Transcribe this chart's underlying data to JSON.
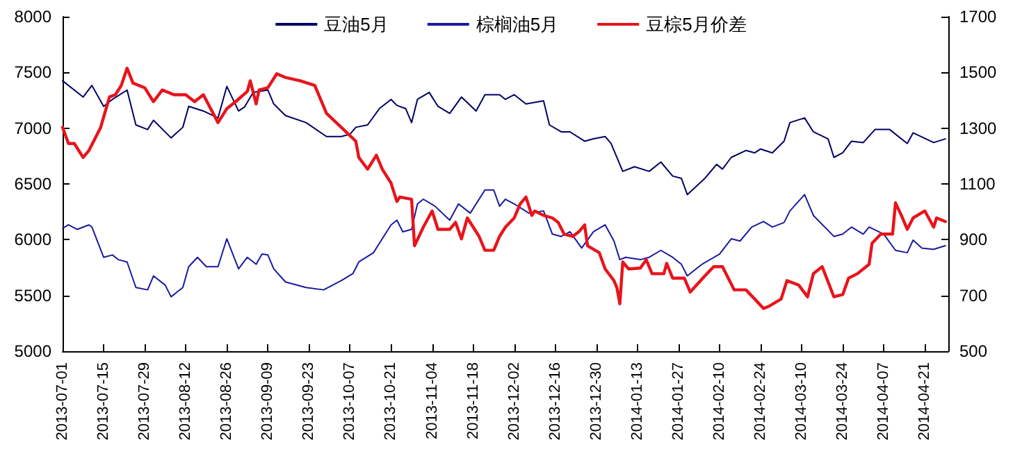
{
  "chart_data": {
    "type": "line",
    "xlim": [
      "2013-07-01",
      "2014-04-29"
    ],
    "xticks": [
      "2013-07-01",
      "2013-07-15",
      "2013-07-29",
      "2013-08-12",
      "2013-08-26",
      "2013-09-09",
      "2013-09-23",
      "2013-10-07",
      "2013-10-21",
      "2013-11-04",
      "2013-11-18",
      "2013-12-02",
      "2013-12-16",
      "2013-12-30",
      "2014-01-13",
      "2014-01-27",
      "2014-02-10",
      "2014-02-24",
      "2014-03-10",
      "2014-03-24",
      "2014-04-07",
      "2014-04-21"
    ],
    "ylim": [
      5000,
      8000
    ],
    "yticks": [
      5000,
      5500,
      6000,
      6500,
      7000,
      7500,
      8000
    ],
    "y2lim": [
      500,
      1700
    ],
    "y2ticks": [
      500,
      700,
      900,
      1100,
      1300,
      1500,
      1700
    ],
    "grid": false,
    "legend": "top",
    "marker": "none",
    "line_style": "solid",
    "series": [
      {
        "name": "豆油5月",
        "color": "#000066",
        "x": [
          "2013-07-01",
          "2013-07-08",
          "2013-07-11",
          "2013-07-15",
          "2013-07-18",
          "2013-07-23",
          "2013-07-26",
          "2013-07-30",
          "2013-08-01",
          "2013-08-07",
          "2013-08-11",
          "2013-08-13",
          "2013-08-18",
          "2013-08-23",
          "2013-08-26",
          "2013-08-30",
          "2013-09-01",
          "2013-09-04",
          "2013-09-09",
          "2013-09-11",
          "2013-09-15",
          "2013-09-22",
          "2013-09-29",
          "2013-10-04",
          "2013-10-07",
          "2013-10-09",
          "2013-10-13",
          "2013-10-17",
          "2013-10-21",
          "2013-10-23",
          "2013-10-26",
          "2013-10-28",
          "2013-10-30",
          "2013-11-03",
          "2013-11-06",
          "2013-11-10",
          "2013-11-14",
          "2013-11-19",
          "2013-11-22",
          "2013-11-27",
          "2013-11-29",
          "2013-12-02",
          "2013-12-06",
          "2013-12-12",
          "2013-12-14",
          "2013-12-18",
          "2013-12-21",
          "2013-12-26",
          "2013-12-29",
          "2014-01-02",
          "2014-01-04",
          "2014-01-08",
          "2014-01-12",
          "2014-01-17",
          "2014-01-21",
          "2014-01-25",
          "2014-01-28",
          "2014-01-30",
          "2014-02-05",
          "2014-02-09",
          "2014-02-11",
          "2014-02-14",
          "2014-02-19",
          "2014-02-22",
          "2014-02-24",
          "2014-02-28",
          "2014-03-04",
          "2014-03-06",
          "2014-03-11",
          "2014-03-14",
          "2014-03-19",
          "2014-03-21",
          "2014-03-24",
          "2014-03-27",
          "2014-03-31",
          "2014-04-04",
          "2014-04-09",
          "2014-04-15",
          "2014-04-17",
          "2014-04-24",
          "2014-04-28"
        ],
        "values": [
          7425,
          7279,
          7383,
          7196,
          7258,
          7342,
          7029,
          6988,
          7071,
          6913,
          7008,
          7196,
          7154,
          7092,
          7375,
          7154,
          7188,
          7321,
          7342,
          7217,
          7113,
          7050,
          6925,
          6925,
          6946,
          7008,
          7029,
          7175,
          7258,
          7204,
          7175,
          7050,
          7258,
          7321,
          7196,
          7133,
          7279,
          7154,
          7300,
          7300,
          7258,
          7300,
          7217,
          7246,
          7029,
          6967,
          6967,
          6883,
          6904,
          6925,
          6863,
          6613,
          6654,
          6613,
          6696,
          6571,
          6550,
          6404,
          6550,
          6675,
          6633,
          6738,
          6800,
          6779,
          6813,
          6779,
          6883,
          7050,
          7092,
          6967,
          6904,
          6738,
          6779,
          6883,
          6871,
          6988,
          6988,
          6863,
          6958,
          6871,
          6904
        ]
      },
      {
        "name": "棕榈油5月",
        "color": "#1a1aa0",
        "x": [
          "2013-07-01",
          "2013-07-03",
          "2013-07-06",
          "2013-07-10",
          "2013-07-11",
          "2013-07-15",
          "2013-07-18",
          "2013-07-20",
          "2013-07-23",
          "2013-07-26",
          "2013-07-30",
          "2013-08-01",
          "2013-08-05",
          "2013-08-07",
          "2013-08-11",
          "2013-08-13",
          "2013-08-16",
          "2013-08-19",
          "2013-08-23",
          "2013-08-26",
          "2013-08-30",
          "2013-09-02",
          "2013-09-05",
          "2013-09-07",
          "2013-09-09",
          "2013-09-11",
          "2013-09-15",
          "2013-09-22",
          "2013-09-28",
          "2013-10-04",
          "2013-10-08",
          "2013-10-10",
          "2013-10-15",
          "2013-10-18",
          "2013-10-21",
          "2013-10-23",
          "2013-10-25",
          "2013-10-28",
          "2013-10-30",
          "2013-11-01",
          "2013-11-05",
          "2013-11-10",
          "2013-11-13",
          "2013-11-17",
          "2013-11-22",
          "2013-11-25",
          "2013-11-27",
          "2013-11-29",
          "2013-12-02",
          "2013-12-07",
          "2013-12-12",
          "2013-12-15",
          "2013-12-18",
          "2013-12-21",
          "2013-12-25",
          "2013-12-29",
          "2014-01-02",
          "2014-01-05",
          "2014-01-07",
          "2014-01-09",
          "2014-01-14",
          "2014-01-17",
          "2014-01-21",
          "2014-01-25",
          "2014-01-28",
          "2014-01-30",
          "2014-02-04",
          "2014-02-10",
          "2014-02-14",
          "2014-02-17",
          "2014-02-21",
          "2014-02-25",
          "2014-02-28",
          "2014-03-04",
          "2014-03-06",
          "2014-03-11",
          "2014-03-14",
          "2014-03-21",
          "2014-03-24",
          "2014-03-27",
          "2014-03-31",
          "2014-04-02",
          "2014-04-07",
          "2014-04-11",
          "2014-04-15",
          "2014-04-17",
          "2014-04-20",
          "2014-04-24",
          "2014-04-28"
        ],
        "values": [
          6100,
          6133,
          6092,
          6133,
          6113,
          5842,
          5863,
          5821,
          5800,
          5571,
          5550,
          5675,
          5592,
          5488,
          5571,
          5758,
          5842,
          5758,
          5758,
          6008,
          5738,
          5842,
          5779,
          5871,
          5863,
          5738,
          5621,
          5571,
          5550,
          5633,
          5696,
          5800,
          5883,
          6008,
          6133,
          6175,
          6071,
          6092,
          6321,
          6363,
          6300,
          6175,
          6321,
          6238,
          6446,
          6446,
          6300,
          6363,
          6321,
          6238,
          6258,
          6050,
          6029,
          6071,
          5925,
          6071,
          6133,
          5988,
          5821,
          5842,
          5821,
          5842,
          5904,
          5842,
          5779,
          5675,
          5779,
          5871,
          6008,
          5988,
          6113,
          6163,
          6113,
          6154,
          6258,
          6404,
          6217,
          6029,
          6050,
          6113,
          6050,
          6113,
          6050,
          5904,
          5883,
          5996,
          5925,
          5913,
          5946
        ]
      },
      {
        "name": "豆棕5月价差",
        "color": "#e8141c",
        "axis": "y2",
        "x": [
          "2013-07-01",
          "2013-07-03",
          "2013-07-05",
          "2013-07-08",
          "2013-07-10",
          "2013-07-14",
          "2013-07-17",
          "2013-07-19",
          "2013-07-21",
          "2013-07-23",
          "2013-07-25",
          "2013-07-29",
          "2013-08-01",
          "2013-08-04",
          "2013-08-08",
          "2013-08-12",
          "2013-08-15",
          "2013-08-18",
          "2013-08-23",
          "2013-08-26",
          "2013-08-29",
          "2013-09-02",
          "2013-09-03",
          "2013-09-05",
          "2013-09-06",
          "2013-09-09",
          "2013-09-12",
          "2013-09-15",
          "2013-09-20",
          "2013-09-25",
          "2013-09-27",
          "2013-09-29",
          "2013-10-04",
          "2013-10-09",
          "2013-10-10",
          "2013-10-13",
          "2013-10-16",
          "2013-10-18",
          "2013-10-21",
          "2013-10-23",
          "2013-10-24",
          "2013-10-28",
          "2013-10-29",
          "2013-11-01",
          "2013-11-04",
          "2013-11-06",
          "2013-11-10",
          "2013-11-12",
          "2013-11-14",
          "2013-11-16",
          "2013-11-20",
          "2013-11-22",
          "2013-11-25",
          "2013-11-27",
          "2013-11-29",
          "2013-12-02",
          "2013-12-04",
          "2013-12-06",
          "2013-12-08",
          "2013-12-09",
          "2013-12-12",
          "2013-12-15",
          "2013-12-17",
          "2013-12-19",
          "2013-12-22",
          "2013-12-24",
          "2013-12-26",
          "2013-12-27",
          "2013-12-31",
          "2014-01-02",
          "2014-01-05",
          "2014-01-06",
          "2014-01-07",
          "2014-01-08",
          "2014-01-10",
          "2014-01-14",
          "2014-01-16",
          "2014-01-18",
          "2014-01-22",
          "2014-01-23",
          "2014-01-25",
          "2014-01-29",
          "2014-01-31",
          "2014-02-05",
          "2014-02-08",
          "2014-02-11",
          "2014-02-15",
          "2014-02-19",
          "2014-02-22",
          "2014-02-25",
          "2014-02-27",
          "2014-03-03",
          "2014-03-05",
          "2014-03-09",
          "2014-03-12",
          "2014-03-14",
          "2014-03-17",
          "2014-03-21",
          "2014-03-24",
          "2014-03-26",
          "2014-03-29",
          "2014-04-02",
          "2014-04-03",
          "2014-04-06",
          "2014-04-10",
          "2014-04-11",
          "2014-04-13",
          "2014-04-15",
          "2014-04-17",
          "2014-04-21",
          "2014-04-24",
          "2014-04-25",
          "2014-04-28"
        ],
        "values": [
          1303,
          1245,
          1245,
          1195,
          1220,
          1303,
          1412,
          1420,
          1453,
          1515,
          1462,
          1445,
          1395,
          1437,
          1420,
          1420,
          1395,
          1420,
          1320,
          1370,
          1395,
          1432,
          1470,
          1387,
          1437,
          1445,
          1495,
          1482,
          1470,
          1453,
          1403,
          1353,
          1303,
          1253,
          1195,
          1153,
          1203,
          1153,
          1103,
          1037,
          1053,
          1045,
          878,
          945,
          1003,
          937,
          937,
          962,
          903,
          978,
          912,
          862,
          862,
          912,
          945,
          978,
          1028,
          1053,
          987,
          1003,
          987,
          978,
          962,
          920,
          912,
          928,
          953,
          878,
          853,
          795,
          753,
          728,
          670,
          820,
          795,
          798,
          828,
          778,
          778,
          815,
          762,
          762,
          712,
          770,
          803,
          803,
          720,
          720,
          687,
          653,
          662,
          687,
          753,
          737,
          695,
          778,
          803,
          695,
          703,
          762,
          778,
          812,
          887,
          920,
          920,
          1032,
          987,
          937,
          978,
          1003,
          945,
          978,
          965
        ]
      }
    ]
  }
}
